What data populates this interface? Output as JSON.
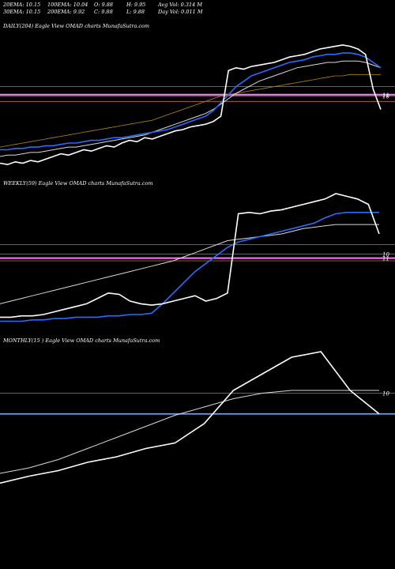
{
  "header": {
    "ema20": "20EMA: 10.15",
    "ema100": "100EMA: 10.04",
    "open": "O: 9.88",
    "high": "H: 9.95",
    "avg_vol": "Avg Vol: 0.314  M",
    "ema30": "30EMA: 10.15",
    "ema200": "200EMA: 9.92",
    "close": "C: 9.88",
    "low": "L: 9.88",
    "day_vol": "Day Vol: 0.011  M"
  },
  "colors": {
    "background": "#000000",
    "price": "#ffffff",
    "ema_blue": "#2a6bff",
    "ema_white": "#d8d8d8",
    "ema_brown": "#b8860b",
    "level_line": "#c8742c",
    "pink_line": "#ff7aff",
    "monthly_level": "#6a9fff"
  },
  "chart_data": [
    {
      "type": "line",
      "title": "DAILY(204) Eagle   View  OMAD charts MunafaSutra.com",
      "price_labels": [
        "10",
        "11"
      ],
      "ylim": [
        0,
        1
      ],
      "series": [
        {
          "role": "price",
          "values": [
            0.05,
            0.04,
            0.06,
            0.05,
            0.07,
            0.06,
            0.08,
            0.1,
            0.12,
            0.11,
            0.13,
            0.15,
            0.14,
            0.16,
            0.18,
            0.17,
            0.2,
            0.22,
            0.21,
            0.24,
            0.23,
            0.25,
            0.27,
            0.29,
            0.3,
            0.32,
            0.33,
            0.34,
            0.36,
            0.4,
            0.74,
            0.76,
            0.75,
            0.77,
            0.78,
            0.79,
            0.8,
            0.82,
            0.84,
            0.85,
            0.86,
            0.88,
            0.9,
            0.91,
            0.92,
            0.93,
            0.92,
            0.9,
            0.86,
            0.6,
            0.45
          ]
        },
        {
          "role": "ema-blue",
          "values": [
            0.15,
            0.15,
            0.16,
            0.16,
            0.17,
            0.17,
            0.18,
            0.18,
            0.19,
            0.2,
            0.2,
            0.21,
            0.22,
            0.22,
            0.23,
            0.24,
            0.24,
            0.25,
            0.26,
            0.27,
            0.28,
            0.29,
            0.3,
            0.32,
            0.34,
            0.36,
            0.38,
            0.4,
            0.44,
            0.5,
            0.56,
            0.62,
            0.66,
            0.7,
            0.72,
            0.74,
            0.76,
            0.78,
            0.8,
            0.81,
            0.82,
            0.84,
            0.85,
            0.86,
            0.86,
            0.87,
            0.87,
            0.86,
            0.84,
            0.8,
            0.76
          ]
        },
        {
          "role": "ema-white",
          "values": [
            0.1,
            0.11,
            0.11,
            0.12,
            0.13,
            0.13,
            0.14,
            0.15,
            0.16,
            0.17,
            0.17,
            0.18,
            0.19,
            0.2,
            0.21,
            0.22,
            0.23,
            0.24,
            0.25,
            0.26,
            0.28,
            0.3,
            0.32,
            0.34,
            0.36,
            0.38,
            0.4,
            0.42,
            0.45,
            0.49,
            0.53,
            0.57,
            0.6,
            0.63,
            0.66,
            0.68,
            0.7,
            0.72,
            0.74,
            0.76,
            0.77,
            0.78,
            0.79,
            0.8,
            0.8,
            0.81,
            0.81,
            0.81,
            0.8,
            0.78,
            0.76
          ]
        },
        {
          "role": "ema-brown",
          "values": [
            0.17,
            0.18,
            0.19,
            0.2,
            0.21,
            0.22,
            0.23,
            0.24,
            0.25,
            0.26,
            0.27,
            0.28,
            0.29,
            0.3,
            0.31,
            0.32,
            0.33,
            0.34,
            0.35,
            0.36,
            0.37,
            0.39,
            0.41,
            0.43,
            0.45,
            0.47,
            0.49,
            0.51,
            0.53,
            0.55,
            0.56,
            0.57,
            0.58,
            0.59,
            0.6,
            0.61,
            0.62,
            0.63,
            0.64,
            0.65,
            0.66,
            0.67,
            0.68,
            0.69,
            0.7,
            0.7,
            0.71,
            0.71,
            0.71,
            0.71,
            0.71
          ]
        }
      ],
      "levels": [
        0.62,
        0.55,
        0.51
      ]
    },
    {
      "type": "line",
      "title": "WEEKLY(59) Eagle   View  OMAD charts MunafaSutra.com",
      "price_labels": [
        "10",
        "11"
      ],
      "ylim": [
        0,
        1
      ],
      "series": [
        {
          "role": "price",
          "values": [
            0.08,
            0.08,
            0.09,
            0.09,
            0.1,
            0.12,
            0.14,
            0.16,
            0.18,
            0.22,
            0.26,
            0.25,
            0.2,
            0.18,
            0.17,
            0.18,
            0.2,
            0.22,
            0.24,
            0.2,
            0.22,
            0.26,
            0.85,
            0.86,
            0.85,
            0.87,
            0.88,
            0.9,
            0.92,
            0.94,
            0.96,
            1.0,
            0.98,
            0.96,
            0.92,
            0.7
          ]
        },
        {
          "role": "ema-blue",
          "values": [
            0.05,
            0.05,
            0.05,
            0.06,
            0.06,
            0.07,
            0.07,
            0.08,
            0.08,
            0.08,
            0.09,
            0.09,
            0.1,
            0.1,
            0.11,
            0.18,
            0.26,
            0.34,
            0.42,
            0.48,
            0.54,
            0.6,
            0.64,
            0.66,
            0.68,
            0.7,
            0.72,
            0.74,
            0.76,
            0.78,
            0.82,
            0.85,
            0.86,
            0.86,
            0.86,
            0.86
          ]
        },
        {
          "role": "ema-white",
          "values": [
            0.18,
            0.2,
            0.22,
            0.24,
            0.26,
            0.28,
            0.3,
            0.32,
            0.34,
            0.36,
            0.38,
            0.4,
            0.42,
            0.44,
            0.46,
            0.48,
            0.5,
            0.53,
            0.56,
            0.59,
            0.62,
            0.65,
            0.66,
            0.67,
            0.68,
            0.69,
            0.7,
            0.72,
            0.74,
            0.75,
            0.76,
            0.77,
            0.77,
            0.77,
            0.77,
            0.77
          ]
        }
      ],
      "levels": [
        0.62,
        0.55,
        0.5
      ]
    },
    {
      "type": "line",
      "title": "MONTHLY(15                   ) Eagle   View  OMAD charts MunafaSutra.com",
      "price_labels": [
        "10"
      ],
      "ylim": [
        0,
        1
      ],
      "series": [
        {
          "role": "price",
          "values": [
            0.05,
            0.1,
            0.14,
            0.2,
            0.24,
            0.3,
            0.34,
            0.48,
            0.72,
            0.84,
            0.96,
            1.0,
            0.72,
            0.55
          ]
        },
        {
          "role": "ema-white",
          "values": [
            0.12,
            0.16,
            0.22,
            0.3,
            0.38,
            0.46,
            0.54,
            0.6,
            0.66,
            0.7,
            0.72,
            0.72,
            0.72,
            0.72
          ]
        }
      ],
      "levels": [
        0.7,
        0.55
      ]
    }
  ]
}
